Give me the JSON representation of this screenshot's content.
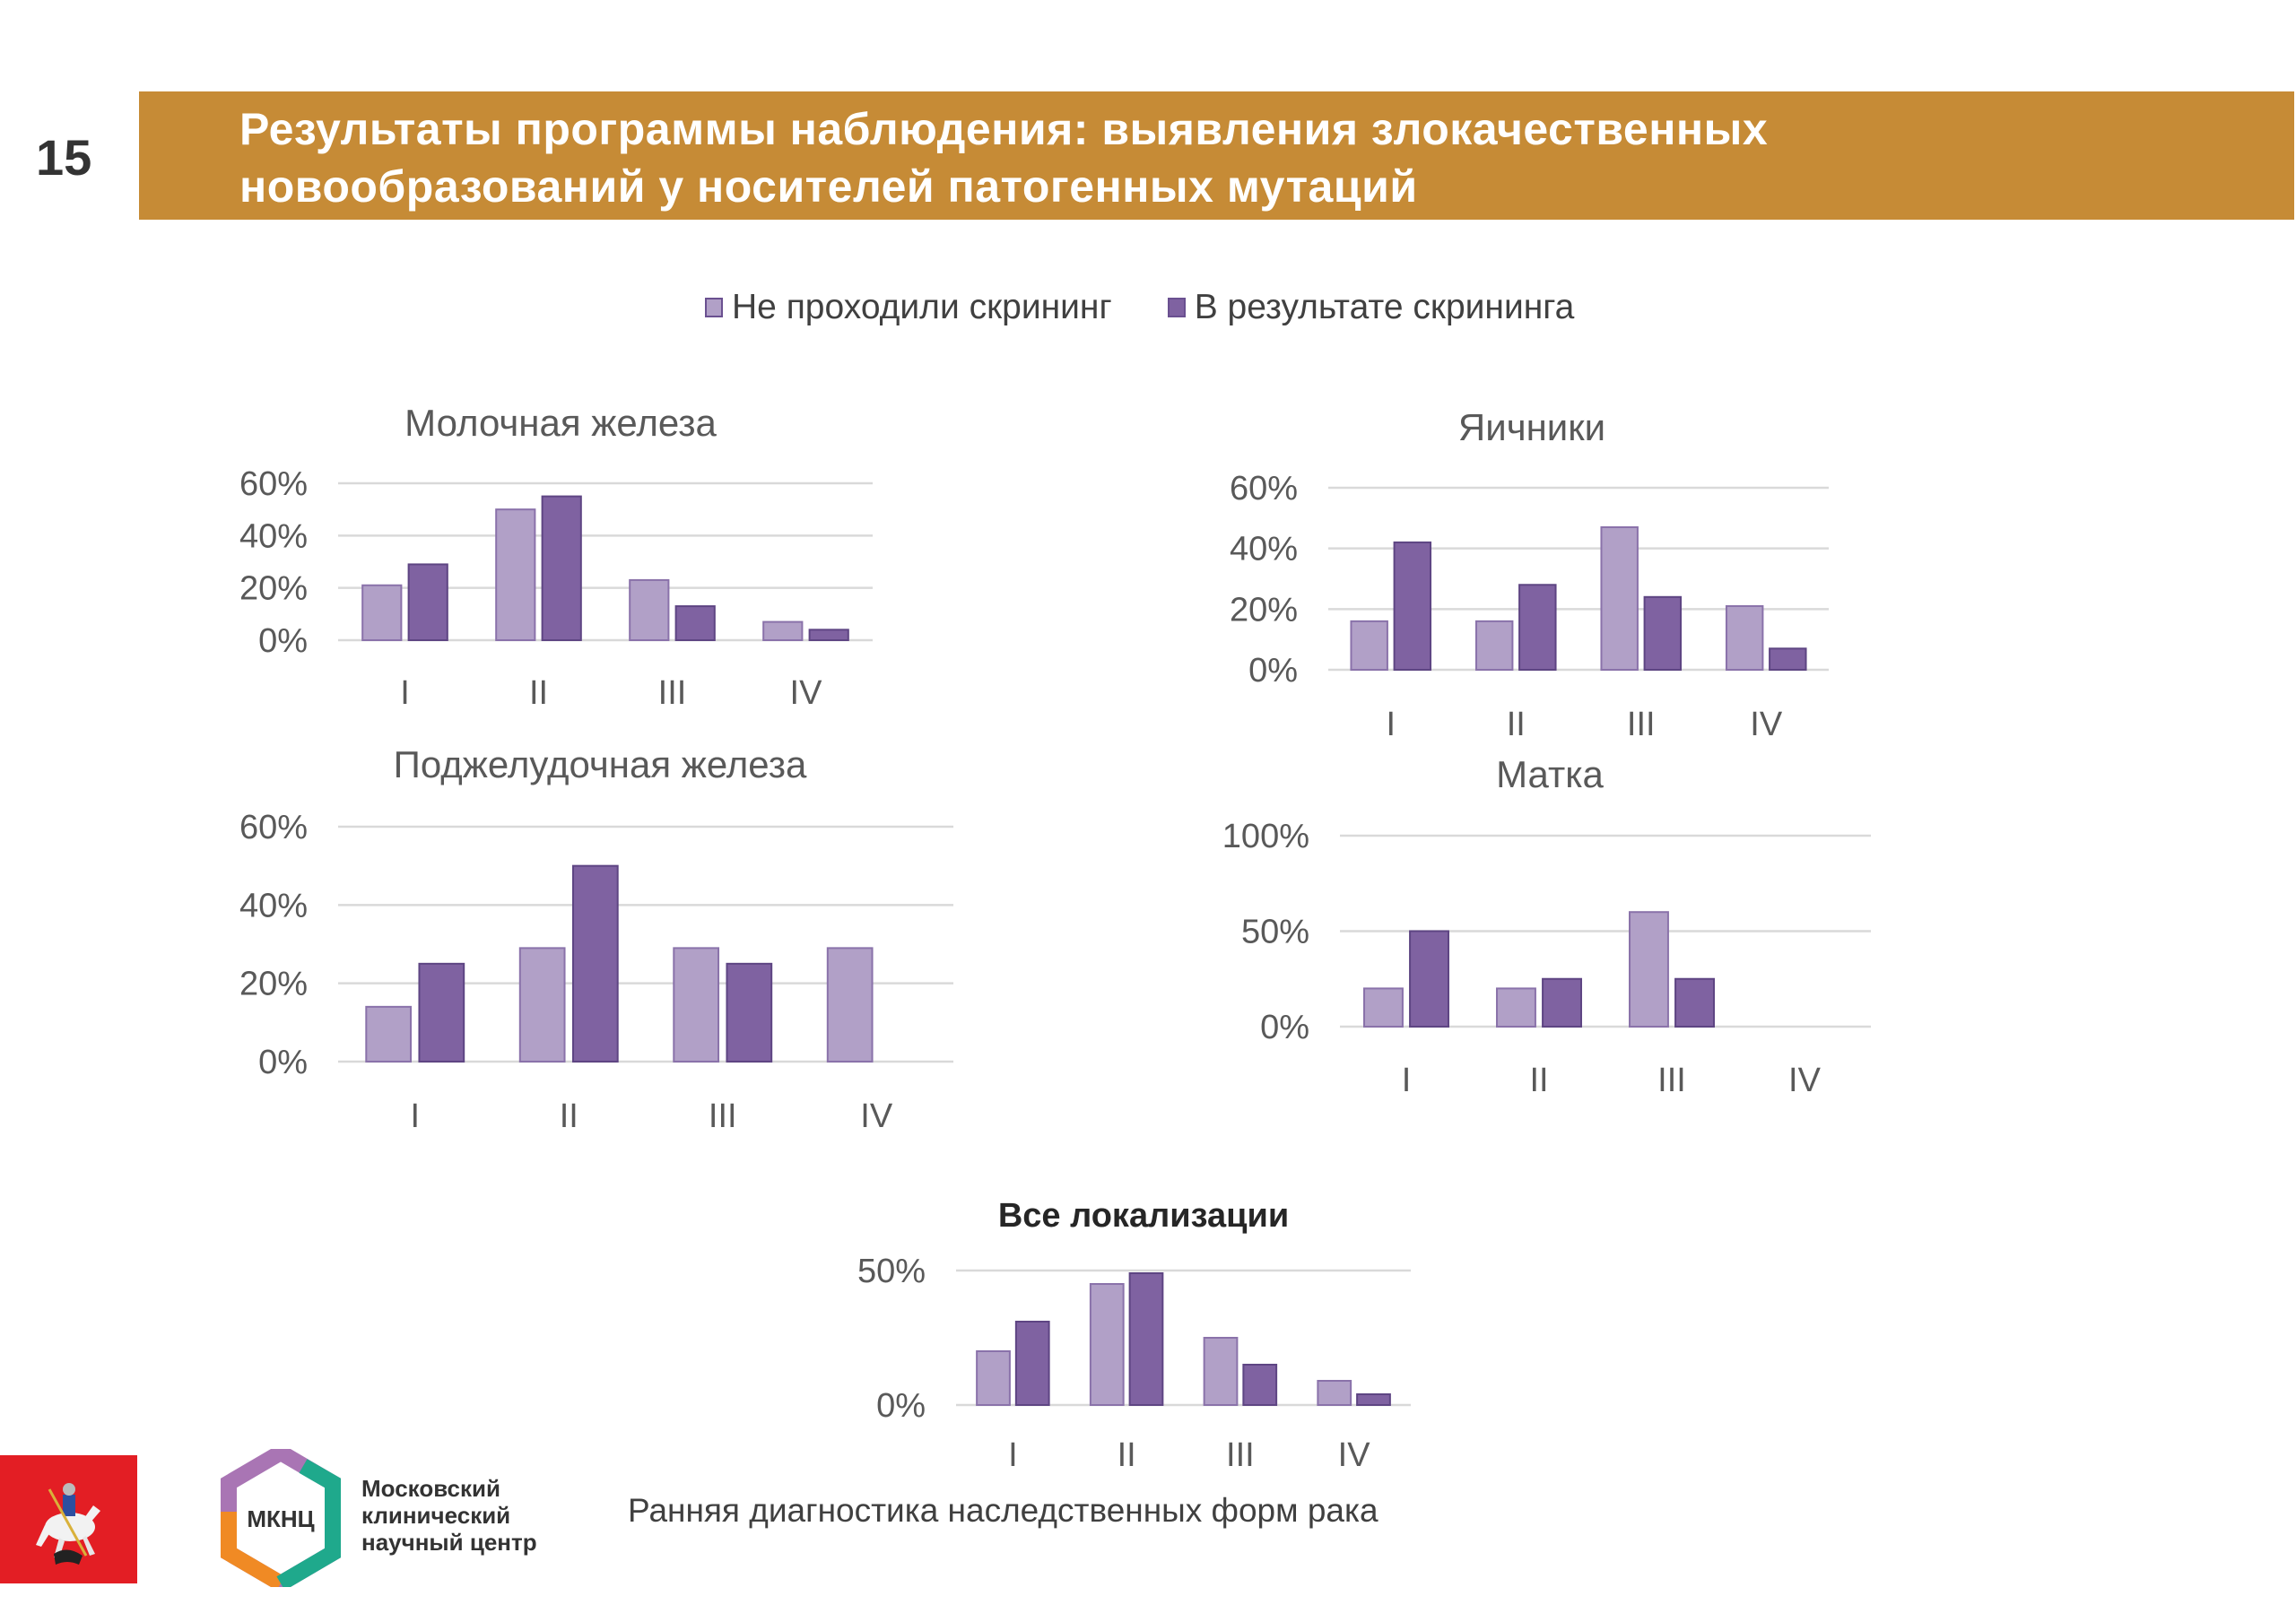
{
  "slide": {
    "page_number": "15",
    "title_line1": "Результаты программы наблюдения: выявления злокачественных",
    "title_line2": "новообразований у носителей патогенных мутаций",
    "footer": "Ранняя диагностика наследственных форм рака"
  },
  "branding": {
    "moscow_logo": "moscow-coat-of-arms",
    "mknc_abbr": "МКНЦ",
    "mknc_line1": "Московский",
    "mknc_line2": "клинический",
    "mknc_line3": "научный центр"
  },
  "colors": {
    "banner": "#C68B36",
    "series_light": "#B1A0C7",
    "series_dark": "#7F62A1",
    "grid": "#D9D9D9",
    "text": "#595959"
  },
  "legend": [
    {
      "label": "Не проходили скрининг",
      "color": "#B1A0C7"
    },
    {
      "label": "В результате скрининга",
      "color": "#7F62A1"
    }
  ],
  "chart_data": [
    {
      "type": "bar",
      "title": "Молочная железа",
      "categories": [
        "I",
        "II",
        "III",
        "IV"
      ],
      "series": [
        {
          "name": "Не проходили скрининг",
          "values": [
            21,
            50,
            23,
            7
          ]
        },
        {
          "name": "В результате скрининга",
          "values": [
            29,
            55,
            13,
            4
          ]
        }
      ],
      "yticks": [
        "0%",
        "20%",
        "40%",
        "60%"
      ],
      "ytick_values": [
        0,
        20,
        40,
        60
      ],
      "ylim": [
        0,
        60
      ],
      "grid": true,
      "legend": "top"
    },
    {
      "type": "bar",
      "title": "Яичники",
      "categories": [
        "I",
        "II",
        "III",
        "IV"
      ],
      "series": [
        {
          "name": "Не проходили скрининг",
          "values": [
            16,
            16,
            47,
            21
          ]
        },
        {
          "name": "В результате скрининга",
          "values": [
            42,
            28,
            24,
            7
          ]
        }
      ],
      "yticks": [
        "0%",
        "20%",
        "40%",
        "60%"
      ],
      "ytick_values": [
        0,
        20,
        40,
        60
      ],
      "ylim": [
        0,
        60
      ],
      "grid": true,
      "legend": "top"
    },
    {
      "type": "bar",
      "title": "Поджелудочная железа",
      "categories": [
        "I",
        "II",
        "III",
        "IV"
      ],
      "series": [
        {
          "name": "Не проходили скрининг",
          "values": [
            14,
            29,
            29,
            29
          ]
        },
        {
          "name": "В результате скрининга",
          "values": [
            25,
            50,
            25,
            0
          ]
        }
      ],
      "yticks": [
        "0%",
        "20%",
        "40%",
        "60%"
      ],
      "ytick_values": [
        0,
        20,
        40,
        60
      ],
      "ylim": [
        0,
        60
      ],
      "grid": true,
      "legend": "top"
    },
    {
      "type": "bar",
      "title": "Матка",
      "categories": [
        "I",
        "II",
        "III",
        "IV"
      ],
      "series": [
        {
          "name": "Не проходили скрининг",
          "values": [
            20,
            20,
            60,
            0
          ]
        },
        {
          "name": "В результате скрининга",
          "values": [
            50,
            25,
            25,
            0
          ]
        }
      ],
      "yticks": [
        "0%",
        "50%",
        "100%"
      ],
      "ytick_values": [
        0,
        50,
        100
      ],
      "ylim": [
        0,
        100
      ],
      "grid": true,
      "legend": "top"
    },
    {
      "type": "bar",
      "title": "Все локализации",
      "categories": [
        "I",
        "II",
        "III",
        "IV"
      ],
      "series": [
        {
          "name": "Не проходили скрининг",
          "values": [
            20,
            45,
            25,
            9
          ]
        },
        {
          "name": "В результате скрининга",
          "values": [
            31,
            49,
            15,
            4
          ]
        }
      ],
      "yticks": [
        "0%",
        "50%"
      ],
      "ytick_values": [
        0,
        50
      ],
      "ylim": [
        0,
        50
      ],
      "grid": true,
      "legend": "top"
    }
  ]
}
